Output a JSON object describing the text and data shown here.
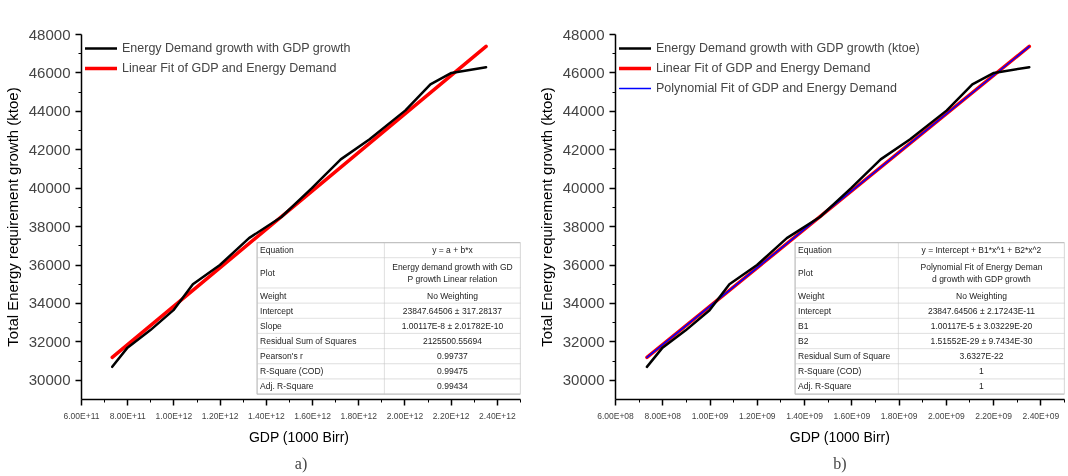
{
  "chart_data": [
    {
      "type": "line",
      "title": "a)",
      "xlabel": "GDP (1000  Birr)",
      "ylabel": "Total Energy requirement growth (ktoe)",
      "xlim": [
        600000000000,
        2500000000000
      ],
      "ylim": [
        29000,
        48000
      ],
      "xticks": [
        {
          "value": 600000000000,
          "label": "6.00E+11"
        },
        {
          "value": 700000000000,
          "label": null
        },
        {
          "value": 800000000000,
          "label": "8.00E+11"
        },
        {
          "value": 900000000000,
          "label": null
        },
        {
          "value": 1000000000000,
          "label": "1.00E+12"
        },
        {
          "value": 1100000000000,
          "label": null
        },
        {
          "value": 1200000000000,
          "label": "1.20E+12"
        },
        {
          "value": 1300000000000,
          "label": null
        },
        {
          "value": 1400000000000,
          "label": "1.40E+12"
        },
        {
          "value": 1500000000000,
          "label": null
        },
        {
          "value": 1600000000000,
          "label": "1.60E+12"
        },
        {
          "value": 1700000000000,
          "label": null
        },
        {
          "value": 1800000000000,
          "label": "1.80E+12"
        },
        {
          "value": 1900000000000,
          "label": null
        },
        {
          "value": 2000000000000,
          "label": "2.00E+12"
        },
        {
          "value": 2100000000000,
          "label": null
        },
        {
          "value": 2200000000000,
          "label": "2.20E+12"
        },
        {
          "value": 2300000000000,
          "label": null
        },
        {
          "value": 2400000000000,
          "label": "2.40E+12"
        },
        {
          "value": 2500000000000,
          "label": null
        }
      ],
      "yticks": [
        30000,
        {
          "value": 31000,
          "label": null
        },
        32000,
        {
          "value": 33000,
          "label": null
        },
        34000,
        {
          "value": 35000,
          "label": null
        },
        36000,
        {
          "value": 37000,
          "label": null
        },
        38000,
        {
          "value": 39000,
          "label": null
        },
        40000,
        {
          "value": 41000,
          "label": null
        },
        42000,
        {
          "value": 43000,
          "label": null
        },
        44000,
        {
          "value": 45000,
          "label": null
        },
        46000,
        {
          "value": 47000,
          "label": null
        },
        48000
      ],
      "grid": false,
      "legend": "top left",
      "series": [
        {
          "name": "Energy Demand growth with GDP growth",
          "color": "#000000",
          "x": [
            733000000000,
            799000000000,
            897000000000,
            998000000000,
            1082000000000,
            1199000000000,
            1325000000000,
            1465000000000,
            1597000000000,
            1722000000000,
            1847000000000,
            2002000000000,
            2110000000000,
            2201000000000,
            2351000000000
          ],
          "values": [
            30700,
            31700,
            32600,
            33650,
            35000,
            36000,
            37400,
            38500,
            40000,
            41500,
            42550,
            44050,
            45400,
            46000,
            46300
          ]
        },
        {
          "name": "Linear Fit of GDP and Energy Demand",
          "color": "#ff0000",
          "x": [
            733000000000,
            2351000000000
          ],
          "values": [
            31190,
            47380
          ]
        }
      ],
      "annotations": [
        "Equation",
        "y = a + b*x",
        "Plot",
        "Energy demand growth with GD\nP growth Linear relation",
        "Weight",
        "No Weighting",
        "Intercept",
        "23847.64506 ± 317.28137",
        "Slope",
        "1.00117E-8 ± 2.01782E-10",
        "Residual Sum of Squares",
        "2125500.55694",
        "Pearson's r",
        "0.99737",
        "R-Square (COD)",
        "0.99475",
        "Adj. R-Square",
        "0.99434"
      ]
    },
    {
      "type": "line",
      "title": "b)",
      "xlabel": "GDP (1000 Birr)",
      "ylabel": "Total Energy requirement growth (ktoe)",
      "xlim": [
        600000000,
        2500000000
      ],
      "ylim": [
        29000,
        48000
      ],
      "xticks": [
        {
          "value": 600000000,
          "label": "6.00E+08"
        },
        {
          "value": 700000000,
          "label": null
        },
        {
          "value": 800000000,
          "label": "8.00E+08"
        },
        {
          "value": 900000000,
          "label": null
        },
        {
          "value": 1000000000,
          "label": "1.00E+09"
        },
        {
          "value": 1100000000,
          "label": null
        },
        {
          "value": 1200000000,
          "label": "1.20E+09"
        },
        {
          "value": 1300000000,
          "label": null
        },
        {
          "value": 1400000000,
          "label": "1.40E+09"
        },
        {
          "value": 1500000000,
          "label": null
        },
        {
          "value": 1600000000,
          "label": "1.60E+09"
        },
        {
          "value": 1700000000,
          "label": null
        },
        {
          "value": 1800000000,
          "label": "1.80E+09"
        },
        {
          "value": 1900000000,
          "label": null
        },
        {
          "value": 2000000000,
          "label": "2.00E+09"
        },
        {
          "value": 2100000000,
          "label": null
        },
        {
          "value": 2200000000,
          "label": "2.20E+09"
        },
        {
          "value": 2300000000,
          "label": null
        },
        {
          "value": 2400000000,
          "label": "2.40E+09"
        },
        {
          "value": 2500000000,
          "label": null
        }
      ],
      "yticks": [
        30000,
        {
          "value": 31000,
          "label": null
        },
        32000,
        {
          "value": 33000,
          "label": null
        },
        34000,
        {
          "value": 35000,
          "label": null
        },
        36000,
        {
          "value": 37000,
          "label": null
        },
        38000,
        {
          "value": 39000,
          "label": null
        },
        40000,
        {
          "value": 41000,
          "label": null
        },
        42000,
        {
          "value": 43000,
          "label": null
        },
        44000,
        {
          "value": 45000,
          "label": null
        },
        46000,
        {
          "value": 47000,
          "label": null
        },
        48000
      ],
      "grid": false,
      "legend": "top left",
      "series": [
        {
          "name": "Energy Demand growth with GDP growth (ktoe)",
          "color": "#000000",
          "x": [
            733000000,
            799000000,
            897000000,
            998000000,
            1082000000,
            1199000000,
            1325000000,
            1465000000,
            1597000000,
            1722000000,
            1847000000,
            2002000000,
            2110000000,
            2201000000,
            2351000000
          ],
          "values": [
            30700,
            31700,
            32600,
            33650,
            35000,
            36000,
            37400,
            38500,
            40000,
            41500,
            42550,
            44050,
            45400,
            46000,
            46300
          ]
        },
        {
          "name": "Linear Fit of GDP and Energy Demand",
          "color": "#ff0000",
          "x": [
            733000000,
            2351000000
          ],
          "values": [
            31190,
            47380
          ]
        },
        {
          "name": "Polynomial Fit of GDP and Energy Demand",
          "color": "#0000ff",
          "x": [
            733000000,
            2351000000
          ],
          "values": [
            31190,
            47380
          ]
        }
      ],
      "annotations": [
        "Equation",
        "y = Intercept + B1*x^1 + B2*x^2",
        "Plot",
        "Polynomial Fit of Energy Deman\nd growth with GDP growth",
        "Weight",
        "No Weighting",
        "Intercept",
        "23847.64506 ± 2.17243E-11",
        "B1",
        "1.00117E-5 ± 3.03229E-20",
        "B2",
        "1.51552E-29 ± 9.7434E-30",
        "Residual Sum of Square",
        "3.6327E-22",
        "R-Square (COD)",
        "1",
        "Adj. R-Square",
        "1"
      ]
    }
  ]
}
